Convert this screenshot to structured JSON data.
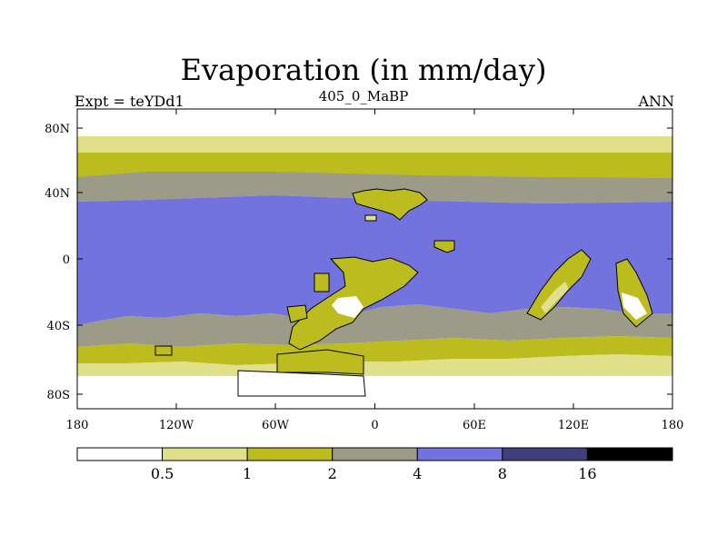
{
  "chart_data": {
    "type": "heatmap",
    "title": "Evaporation (in mm/day)",
    "subtitle_left": "Expt = teYDd1",
    "subtitle_center": "405_0_MaBP",
    "subtitle_right": "ANN",
    "x_ticks": [
      "180",
      "120W",
      "60W",
      "0",
      "60E",
      "120E",
      "180"
    ],
    "y_ticks": [
      "80N",
      "40N",
      "0",
      "40S",
      "80S"
    ],
    "xlim": [
      -180,
      180
    ],
    "ylim": [
      -90,
      90
    ],
    "colorbar": {
      "levels": [
        "0.5",
        "1",
        "2",
        "4",
        "8",
        "16"
      ],
      "colors": [
        "#ffffff",
        "#e0e08a",
        "#bcbc1e",
        "#9b9b87",
        "#7373e0",
        "#40407f",
        "#000000"
      ]
    },
    "zonal_bands": [
      {
        "lat_range": [
          75,
          90
        ],
        "class": "<0.5"
      },
      {
        "lat_range": [
          65,
          75
        ],
        "class": "0.5-1"
      },
      {
        "lat_range": [
          50,
          65
        ],
        "class": "1-2"
      },
      {
        "lat_range": [
          35,
          50
        ],
        "class": "2-4"
      },
      {
        "lat_range": [
          -25,
          35
        ],
        "class": "4-8"
      },
      {
        "lat_range": [
          -45,
          -25
        ],
        "class": "2-4"
      },
      {
        "lat_range": [
          -60,
          -45
        ],
        "class": "1-2"
      },
      {
        "lat_range": [
          -70,
          -60
        ],
        "class": "0.5-1"
      },
      {
        "lat_range": [
          -90,
          -70
        ],
        "class": "<0.5"
      }
    ]
  }
}
